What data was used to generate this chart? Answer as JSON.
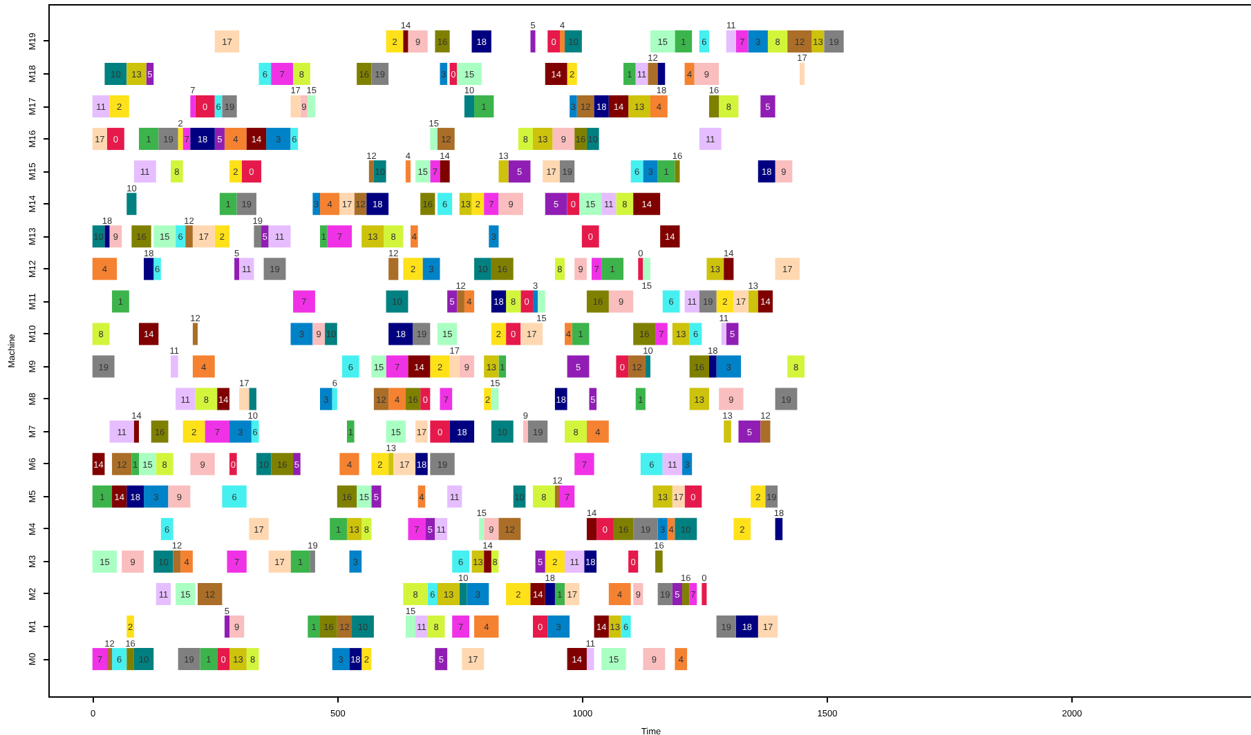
{
  "chart_data": {
    "type": "bar",
    "orientation": "horizontal",
    "xlabel": "Time",
    "ylabel": "Machine",
    "grid": false,
    "categories": [
      "M19",
      "M18",
      "M17",
      "M16",
      "M15",
      "M14",
      "M13",
      "M12",
      "M11",
      "M10",
      "M9",
      "M8",
      "M7",
      "M6",
      "M5",
      "M4",
      "M3",
      "M2",
      "M1",
      "M0"
    ],
    "xlim": [
      -90,
      2370
    ],
    "xticks": [
      0,
      500,
      1000,
      1500,
      2000
    ],
    "series": [
      {
        "name": "0",
        "color": "#e6194b",
        "base": [
          930,
          730,
          210,
          30,
          305,
          970,
          1000,
          1115,
          875,
          845,
          1070,
          670,
          690,
          280,
          1210,
          1030,
          1095,
          1245,
          900,
          255
        ],
        "values": [
          25,
          15,
          40,
          35,
          40,
          25,
          35,
          10,
          25,
          30,
          25,
          20,
          40,
          15,
          35,
          35,
          20,
          10,
          30,
          25
        ]
      },
      {
        "name": "1",
        "color": "#3cb44b",
        "base": [
          1190,
          1085,
          780,
          95,
          1155,
          260,
          465,
          1040,
          40,
          980,
          830,
          1110,
          520,
          80,
          0,
          485,
          405,
          945,
          440,
          220
        ],
        "values": [
          35,
          25,
          40,
          40,
          35,
          35,
          15,
          45,
          35,
          35,
          15,
          20,
          15,
          15,
          40,
          35,
          40,
          20,
          25,
          35
        ]
      },
      {
        "name": "2",
        "color": "#ffe119",
        "base": [
          600,
          970,
          35,
          175,
          280,
          775,
          250,
          635,
          1275,
          815,
          690,
          800,
          185,
          570,
          1345,
          1310,
          925,
          845,
          70,
          550
        ],
        "values": [
          35,
          20,
          40,
          10,
          25,
          25,
          30,
          40,
          35,
          30,
          40,
          15,
          45,
          35,
          30,
          35,
          40,
          50,
          15,
          20
        ]
      },
      {
        "name": "3",
        "color": "#0082c8",
        "base": [
          1340,
          710,
          975,
          355,
          1125,
          450,
          810,
          675,
          900,
          405,
          1275,
          465,
          280,
          1205,
          105,
          1155,
          525,
          765,
          930,
          490
        ],
        "values": [
          40,
          15,
          15,
          50,
          30,
          15,
          20,
          35,
          10,
          45,
          50,
          25,
          45,
          20,
          50,
          20,
          25,
          45,
          45,
          35
        ]
      },
      {
        "name": "4",
        "color": "#f58231",
        "base": [
          955,
          1210,
          1140,
          270,
          640,
          465,
          650,
          0,
          760,
          965,
          205,
          605,
          1010,
          505,
          665,
          1175,
          180,
          1055,
          780,
          1190
        ],
        "values": [
          10,
          20,
          35,
          45,
          10,
          40,
          15,
          50,
          20,
          15,
          45,
          35,
          45,
          40,
          15,
          15,
          25,
          45,
          50,
          25
        ]
      },
      {
        "name": "5",
        "color": "#911eb4",
        "base": [
          895,
          110,
          1365,
          250,
          850,
          925,
          345,
          290,
          725,
          1295,
          970,
          1015,
          1320,
          410,
          570,
          680,
          905,
          1185,
          270,
          700
        ],
        "values": [
          10,
          15,
          30,
          20,
          45,
          45,
          15,
          10,
          20,
          25,
          45,
          15,
          45,
          15,
          20,
          20,
          20,
          20,
          10,
          25
        ]
      },
      {
        "name": "6",
        "color": "#46f0f0",
        "base": [
          1240,
          340,
          250,
          405,
          1100,
          705,
          170,
          125,
          1165,
          1220,
          510,
          490,
          325,
          1120,
          265,
          140,
          735,
          685,
          1080,
          40
        ],
        "values": [
          20,
          25,
          15,
          15,
          25,
          30,
          20,
          15,
          35,
          25,
          35,
          10,
          15,
          45,
          50,
          25,
          35,
          20,
          20,
          30
        ]
      },
      {
        "name": "7",
        "color": "#f032e6",
        "base": [
          1315,
          365,
          200,
          185,
          690,
          800,
          480,
          1020,
          410,
          1150,
          600,
          710,
          230,
          985,
          955,
          645,
          275,
          1220,
          735,
          0
        ],
        "values": [
          25,
          45,
          10,
          15,
          20,
          30,
          50,
          20,
          45,
          25,
          45,
          25,
          50,
          40,
          30,
          35,
          40,
          15,
          35,
          30
        ]
      },
      {
        "name": "8",
        "color": "#d2f53c",
        "base": [
          1380,
          410,
          1280,
          870,
          160,
          1070,
          595,
          945,
          845,
          0,
          1420,
          210,
          965,
          130,
          900,
          550,
          815,
          635,
          685,
          315
        ],
        "values": [
          40,
          35,
          40,
          30,
          25,
          35,
          40,
          20,
          30,
          35,
          35,
          45,
          45,
          35,
          45,
          20,
          15,
          50,
          35,
          25
        ]
      },
      {
        "name": "9",
        "color": "#fabebe",
        "base": [
          645,
          1230,
          425,
          940,
          1395,
          830,
          35,
          985,
          1055,
          450,
          750,
          1280,
          880,
          200,
          155,
          800,
          60,
          1105,
          280,
          1125
        ],
        "values": [
          40,
          50,
          15,
          45,
          35,
          50,
          25,
          25,
          50,
          25,
          30,
          50,
          10,
          50,
          45,
          30,
          45,
          20,
          30,
          45
        ]
      },
      {
        "name": "10",
        "color": "#008080",
        "base": [
          965,
          25,
          760,
          1010,
          575,
          70,
          0,
          780,
          600,
          475,
          1130,
          320,
          815,
          335,
          860,
          1190,
          125,
          750,
          530,
          85
        ],
        "values": [
          35,
          45,
          20,
          25,
          25,
          20,
          25,
          35,
          45,
          25,
          10,
          15,
          45,
          30,
          25,
          45,
          40,
          15,
          45,
          40
        ]
      },
      {
        "name": "11",
        "color": "#e6beff",
        "base": [
          1295,
          1110,
          0,
          1240,
          85,
          1040,
          360,
          300,
          1210,
          1285,
          160,
          170,
          35,
          1165,
          725,
          700,
          965,
          130,
          660,
          1010
        ],
        "values": [
          20,
          25,
          35,
          45,
          45,
          30,
          45,
          30,
          30,
          10,
          15,
          40,
          50,
          40,
          30,
          25,
          40,
          30,
          25,
          15
        ]
      },
      {
        "name": "12",
        "color": "#aa6e28",
        "base": [
          1420,
          1135,
          990,
          705,
          565,
          535,
          190,
          605,
          745,
          205,
          1095,
          575,
          1365,
          40,
          945,
          830,
          165,
          215,
          500,
          30
        ],
        "values": [
          50,
          20,
          35,
          35,
          10,
          25,
          15,
          20,
          15,
          10,
          35,
          30,
          20,
          40,
          10,
          45,
          15,
          50,
          30,
          10
        ]
      },
      {
        "name": "13",
        "color": "#cdc20c",
        "base": [
          1470,
          70,
          1095,
          900,
          830,
          750,
          550,
          1255,
          1340,
          1185,
          800,
          1220,
          1290,
          605,
          1145,
          520,
          775,
          705,
          1055,
          280
        ],
        "values": [
          25,
          40,
          45,
          40,
          20,
          25,
          45,
          35,
          20,
          35,
          30,
          40,
          15,
          10,
          40,
          30,
          25,
          45,
          25,
          35
        ]
      },
      {
        "name": "14",
        "color": "#800000",
        "base": [
          635,
          925,
          1055,
          315,
          710,
          1105,
          1160,
          1290,
          1360,
          95,
          645,
          255,
          85,
          0,
          40,
          1010,
          800,
          895,
          1025,
          970
        ],
        "values": [
          10,
          45,
          40,
          40,
          20,
          55,
          40,
          20,
          30,
          40,
          45,
          25,
          10,
          25,
          30,
          20,
          15,
          30,
          30,
          40
        ]
      },
      {
        "name": "15",
        "color": "#aaffc3",
        "base": [
          1140,
          745,
          440,
          690,
          660,
          995,
          125,
          1125,
          910,
          705,
          570,
          815,
          600,
          95,
          540,
          790,
          0,
          170,
          640,
          1040
        ],
        "values": [
          50,
          50,
          15,
          15,
          30,
          45,
          45,
          15,
          15,
          40,
          30,
          15,
          40,
          35,
          30,
          10,
          50,
          40,
          20,
          50
        ]
      },
      {
        "name": "16",
        "color": "#808000",
        "base": [
          700,
          540,
          1260,
          985,
          1190,
          670,
          80,
          815,
          1010,
          1105,
          1220,
          640,
          120,
          365,
          500,
          1065,
          1150,
          1205,
          465,
          70
        ],
        "values": [
          30,
          30,
          20,
          25,
          10,
          30,
          40,
          45,
          45,
          45,
          40,
          30,
          35,
          45,
          40,
          40,
          15,
          15,
          35,
          15
        ]
      },
      {
        "name": "17",
        "color": "#ffd8b1",
        "base": [
          250,
          1445,
          405,
          0,
          920,
          505,
          205,
          1395,
          1310,
          875,
          730,
          300,
          660,
          615,
          1185,
          320,
          360,
          965,
          1360,
          755
        ],
        "values": [
          50,
          10,
          20,
          30,
          35,
          30,
          45,
          50,
          30,
          45,
          20,
          20,
          25,
          45,
          25,
          40,
          45,
          30,
          40,
          45
        ]
      },
      {
        "name": "18",
        "color": "#000080",
        "base": [
          775,
          1155,
          1025,
          200,
          1360,
          560,
          25,
          105,
          815,
          605,
          1260,
          945,
          730,
          660,
          70,
          1395,
          1005,
          925,
          1315,
          525
        ],
        "values": [
          40,
          15,
          30,
          50,
          35,
          45,
          10,
          20,
          30,
          50,
          15,
          25,
          50,
          25,
          35,
          15,
          25,
          20,
          45,
          25
        ]
      },
      {
        "name": "19",
        "color": "#808080",
        "base": [
          1495,
          570,
          265,
          135,
          955,
          295,
          330,
          350,
          1240,
          655,
          0,
          1395,
          890,
          690,
          1375,
          1105,
          445,
          1155,
          1275,
          175
        ],
        "values": [
          40,
          35,
          30,
          40,
          30,
          40,
          15,
          45,
          35,
          35,
          45,
          45,
          40,
          50,
          25,
          50,
          10,
          30,
          40,
          45
        ]
      }
    ]
  }
}
